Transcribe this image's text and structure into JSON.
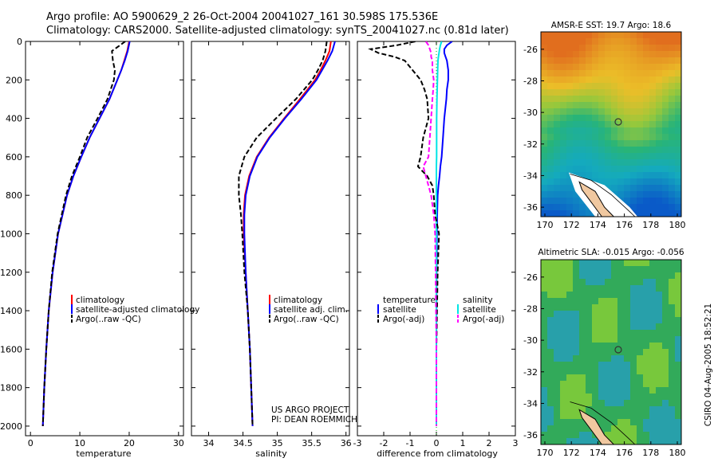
{
  "header": {
    "line1": "Argo profile: AO 5900629_2 26-Oct-2004 20041027_161 30.598S 175.536E",
    "line2": "Climatology: CARS2000. Satellite-adjusted climatology: synTS_20041027.nc (0.81d later)"
  },
  "credit": "CSIRO 04-Aug-2005 18:52:21",
  "project": {
    "line1": "US ARGO PROJECT",
    "line2": "PI: DEAN ROEMMICH"
  },
  "colors": {
    "climatology": "#ff0000",
    "satellite": "#0000ff",
    "argo": "#000000",
    "salinity_sat": "#00e5e5",
    "salinity_argo": "#ff00ff",
    "land": "#f0c8a0"
  },
  "chart_data": [
    {
      "type": "line",
      "name": "temperature-profile",
      "xlabel": "temperature",
      "ylabel": "",
      "xlim": [
        -1,
        31
      ],
      "ylim": [
        2050,
        0
      ],
      "x_ticks": [
        "0",
        "10",
        "20",
        "30"
      ],
      "y_ticks": [
        "0",
        "200",
        "400",
        "600",
        "800",
        "1000",
        "1200",
        "1400",
        "1600",
        "1800",
        "2000"
      ],
      "legend": [
        "climatology",
        "satellite-adjusted climatology",
        "Argo(..raw -QC)"
      ],
      "legend_position": "lower-right",
      "depth": [
        0,
        50,
        100,
        150,
        200,
        300,
        400,
        500,
        600,
        700,
        800,
        1000,
        1200,
        1400,
        1600,
        1800,
        2000
      ],
      "series": [
        {
          "name": "climatology",
          "color": "red",
          "values": [
            20,
            19.6,
            19.0,
            18.4,
            17.6,
            16.0,
            14.0,
            12.0,
            10.3,
            8.7,
            7.4,
            5.6,
            4.5,
            3.7,
            3.2,
            2.8,
            2.5
          ]
        },
        {
          "name": "satellite-adjusted climatology",
          "color": "blue",
          "values": [
            20.1,
            19.7,
            19.1,
            18.4,
            17.6,
            16.0,
            14.0,
            12.0,
            10.3,
            8.7,
            7.4,
            5.6,
            4.5,
            3.7,
            3.2,
            2.8,
            2.5
          ]
        },
        {
          "name": "Argo(..raw -QC)",
          "color": "black",
          "dash": true,
          "values": [
            19.2,
            16.5,
            16.7,
            17.1,
            16.9,
            15.6,
            13.6,
            11.5,
            10.0,
            8.4,
            7.2,
            5.5,
            4.4,
            3.7,
            3.2,
            2.8,
            2.5
          ]
        }
      ]
    },
    {
      "type": "line",
      "name": "salinity-profile",
      "xlabel": "salinity",
      "xlim": [
        33.75,
        36.05
      ],
      "ylim": [
        2050,
        0
      ],
      "x_ticks": [
        "34",
        "34.5",
        "35",
        "35.5",
        "36"
      ],
      "legend": [
        "climatology",
        "satellite adj. clim.",
        "Argo(..raw -QC)"
      ],
      "legend_position": "lower-right",
      "depth": [
        0,
        50,
        100,
        150,
        200,
        300,
        400,
        500,
        600,
        700,
        800,
        900,
        1000,
        1200,
        1400,
        1600,
        1800,
        2000
      ],
      "series": [
        {
          "name": "climatology",
          "color": "red",
          "values": [
            35.78,
            35.76,
            35.7,
            35.63,
            35.55,
            35.33,
            35.1,
            34.88,
            34.7,
            34.59,
            34.53,
            34.51,
            34.51,
            34.54,
            34.57,
            34.6,
            34.62,
            34.64
          ]
        },
        {
          "name": "satellite adj. clim.",
          "color": "blue",
          "values": [
            35.84,
            35.8,
            35.73,
            35.65,
            35.57,
            35.35,
            35.11,
            34.89,
            34.71,
            34.6,
            34.54,
            34.52,
            34.52,
            34.54,
            34.57,
            34.6,
            34.62,
            34.64
          ]
        },
        {
          "name": "Argo(..raw -QC)",
          "color": "black",
          "dash": true,
          "values": [
            35.72,
            35.7,
            35.66,
            35.59,
            35.51,
            35.27,
            34.98,
            34.7,
            34.52,
            34.44,
            34.44,
            34.47,
            34.49,
            34.52,
            34.57,
            34.6,
            34.62,
            34.64
          ]
        }
      ]
    },
    {
      "type": "line",
      "name": "difference-profile",
      "xlabel": "difference from climatology",
      "xlim": [
        -3,
        3
      ],
      "ylim": [
        2050,
        0
      ],
      "x_ticks": [
        "-3",
        "-2",
        "-1",
        "0",
        "1",
        "2",
        "3"
      ],
      "legend_left": [
        "temperature",
        "satellite",
        "Argo(-adj)"
      ],
      "legend_right": [
        "salinity",
        "satellite",
        "Argo(-adj)"
      ],
      "depth": [
        0,
        20,
        40,
        60,
        80,
        100,
        150,
        200,
        250,
        300,
        400,
        500,
        600,
        650,
        700,
        750,
        800,
        900,
        1000,
        1200,
        1600,
        2000
      ],
      "series": [
        {
          "name": "temperature satellite",
          "color": "blue",
          "values": [
            0.6,
            0.4,
            0.3,
            0.3,
            0.35,
            0.4,
            0.45,
            0.45,
            0.4,
            0.38,
            0.3,
            0.25,
            0.2,
            0.15,
            0.12,
            0.08,
            0.05,
            0.03,
            0.02,
            0.01,
            0.0,
            0.0
          ]
        },
        {
          "name": "salinity satellite",
          "color": "cyan",
          "values": [
            0.2,
            0.15,
            0.12,
            0.1,
            0.08,
            0.06,
            0.05,
            0.04,
            0.03,
            0.02,
            0.01,
            0.01,
            0.01,
            0.0,
            0.0,
            0.0,
            0.0,
            0.0,
            0.0,
            0.0,
            0.0,
            0.0
          ]
        },
        {
          "name": "temperature Argo(-adj)",
          "color": "black",
          "dash": true,
          "values": [
            -0.8,
            -1.5,
            -2.5,
            -2.2,
            -1.6,
            -1.2,
            -0.9,
            -0.6,
            -0.45,
            -0.35,
            -0.3,
            -0.5,
            -0.6,
            -0.7,
            -0.35,
            -0.15,
            -0.1,
            -0.05,
            0.1,
            0.05,
            0.0,
            0.0
          ]
        },
        {
          "name": "salinity Argo(-adj)",
          "color": "magenta",
          "dash": true,
          "values": [
            -0.4,
            -0.3,
            -0.25,
            -0.2,
            -0.2,
            -0.15,
            -0.15,
            -0.1,
            -0.12,
            -0.15,
            -0.2,
            -0.25,
            -0.3,
            -0.5,
            -0.4,
            -0.3,
            -0.2,
            -0.1,
            -0.05,
            -0.03,
            0.0,
            0.0
          ]
        }
      ]
    },
    {
      "type": "heatmap",
      "name": "sst-map",
      "title": "AMSR-E SST: 19.7 Argo: 18.6",
      "x_ticks": [
        "170",
        "172",
        "174",
        "176",
        "178",
        "180"
      ],
      "y_ticks": [
        "-26",
        "-28",
        "-30",
        "-32",
        "-34",
        "-36"
      ],
      "xlim": [
        169.7,
        180.3
      ],
      "ylim": [
        -36.6,
        -24.9
      ],
      "float_position": [
        175.54,
        -30.6
      ]
    },
    {
      "type": "heatmap",
      "name": "sla-map",
      "title": "Altimetric SLA: -0.015 Argo: -0.056",
      "x_ticks": [
        "170",
        "172",
        "174",
        "176",
        "178",
        "180"
      ],
      "y_ticks": [
        "-26",
        "-28",
        "-30",
        "-32",
        "-34",
        "-36"
      ],
      "xlim": [
        169.7,
        180.3
      ],
      "ylim": [
        -36.6,
        -24.9
      ],
      "float_position": [
        175.54,
        -30.6
      ]
    }
  ]
}
